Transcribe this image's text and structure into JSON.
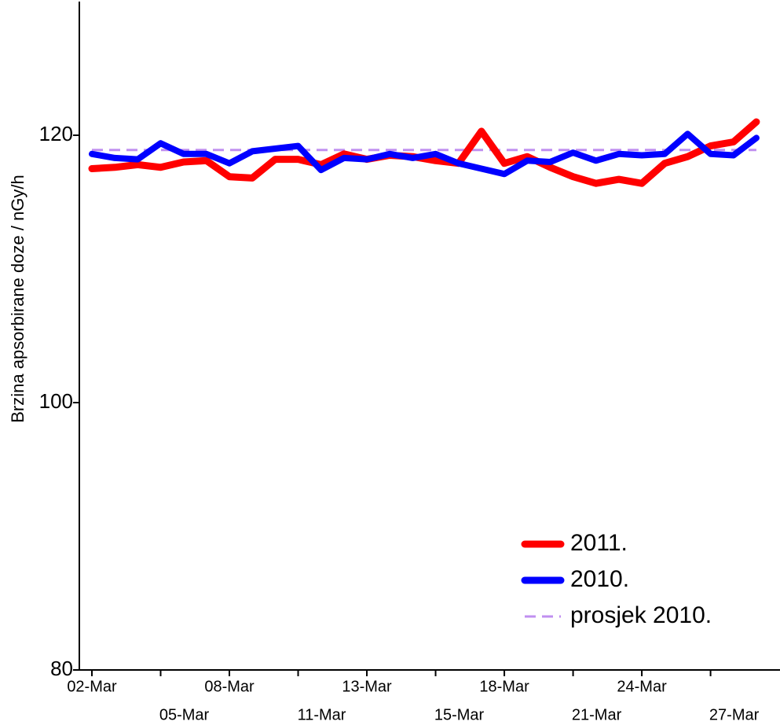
{
  "chart_data": {
    "type": "line",
    "y_label": "Brzina apsorbirane doze  /  nGy/h",
    "categories": [
      "02-Mar",
      null,
      null,
      "05-Mar",
      null,
      null,
      "08-Mar",
      null,
      null,
      "11-Mar",
      null,
      null,
      "13-Mar",
      null,
      null,
      "15-Mar",
      null,
      null,
      "18-Mar",
      null,
      null,
      "21-Mar",
      null,
      null,
      "24-Mar",
      null,
      null,
      "27-Mar",
      null,
      null
    ],
    "series": [
      {
        "name": "2011.",
        "color": "#ff0000",
        "values": [
          117.5,
          117.6,
          117.8,
          117.6,
          118.0,
          118.1,
          116.9,
          116.8,
          118.2,
          118.2,
          117.8,
          118.6,
          118.2,
          118.5,
          118.4,
          118.1,
          117.9,
          120.3,
          117.9,
          118.4,
          117.6,
          116.9,
          116.4,
          116.7,
          116.4,
          117.9,
          118.4,
          119.2,
          119.5,
          121.0
        ]
      },
      {
        "name": "2010.",
        "color": "#0000ff",
        "values": [
          118.6,
          118.3,
          118.2,
          119.4,
          118.6,
          118.6,
          117.9,
          118.8,
          119.0,
          119.2,
          117.4,
          118.3,
          118.2,
          118.6,
          118.3,
          118.6,
          117.9,
          117.5,
          117.1,
          118.1,
          118.0,
          118.7,
          118.1,
          118.6,
          118.5,
          118.6,
          120.1,
          118.6,
          118.5,
          119.8
        ]
      }
    ],
    "reference_line": {
      "name": "prosjek 2010.",
      "value": 118.9,
      "color": "#c08ff0"
    },
    "ylim": [
      80,
      130
    ],
    "yticks": [
      80,
      100,
      120
    ],
    "legend": "lower right"
  }
}
